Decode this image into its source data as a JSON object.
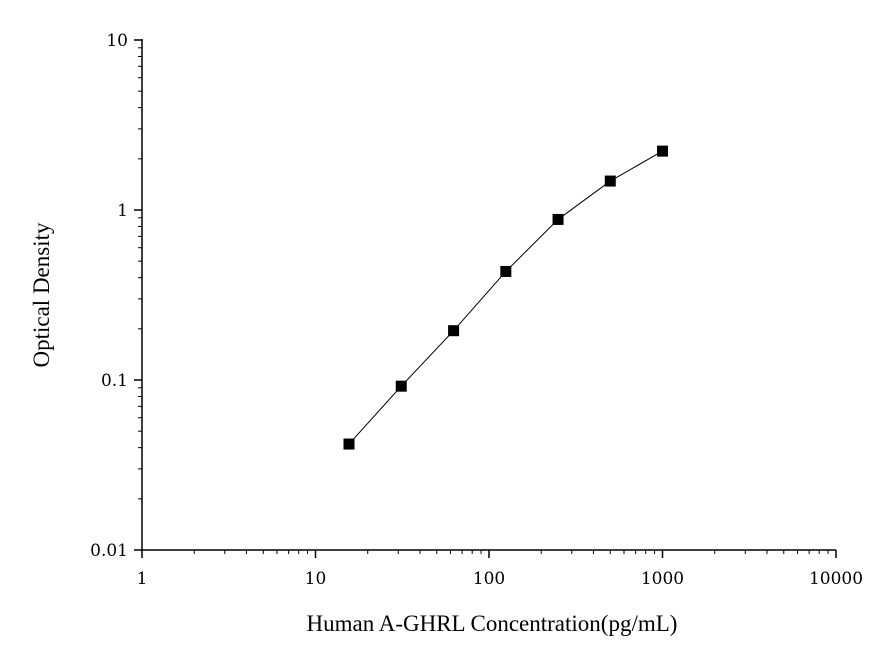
{
  "chart_data": {
    "type": "scatter",
    "title": "",
    "xlabel": "Human A-GHRL Concentration(pg/mL)",
    "ylabel": "Optical Density",
    "xscale": "log",
    "yscale": "log",
    "xlim": [
      1,
      10000
    ],
    "ylim": [
      0.01,
      10
    ],
    "x_ticks": [
      "1",
      "10",
      "100",
      "1000",
      "10000"
    ],
    "y_ticks": [
      "0.01",
      "0.1",
      "1",
      "10"
    ],
    "grid": false,
    "legend": "none",
    "line_color": "#000000",
    "marker_color": "#000000",
    "marker": "square",
    "series": [
      {
        "x": [
          15.6,
          31.2,
          62.5,
          125,
          250,
          500,
          1000
        ],
        "y": [
          0.042,
          0.092,
          0.195,
          0.435,
          0.88,
          1.48,
          2.22
        ]
      }
    ]
  }
}
